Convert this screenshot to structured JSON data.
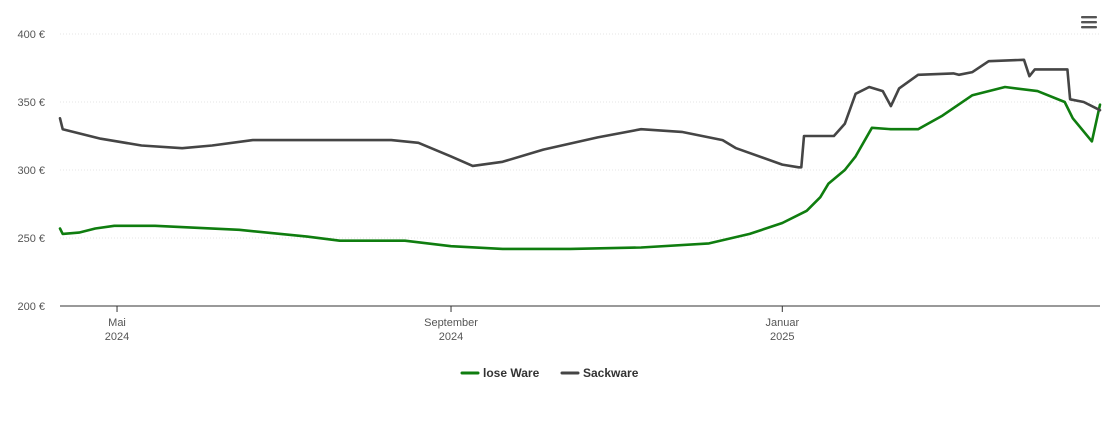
{
  "colors": {
    "lose_ware": "#0f7d0f",
    "sackware": "#454545",
    "grid": "#e6e6e6",
    "axis": "#333333"
  },
  "menu": {
    "icon": "hamburger-menu-icon"
  },
  "chart_data": {
    "type": "line",
    "title": "",
    "xlabel": "",
    "ylabel": "",
    "ylim": [
      200,
      400
    ],
    "xlim": [
      "2024-04-10",
      "2025-04-28"
    ],
    "y_ticks": [
      {
        "value": 200,
        "label": "200 €"
      },
      {
        "value": 250,
        "label": "250 €"
      },
      {
        "value": 300,
        "label": "300 €"
      },
      {
        "value": 350,
        "label": "350 €"
      },
      {
        "value": 400,
        "label": "400 €"
      }
    ],
    "x_ticks": [
      {
        "date": "2024-05-01",
        "label": "Mai",
        "sublabel": "2024"
      },
      {
        "date": "2024-09-01",
        "label": "September",
        "sublabel": "2024"
      },
      {
        "date": "2025-01-01",
        "label": "Januar",
        "sublabel": "2025"
      }
    ],
    "grid": true,
    "legend_position": "bottom-center",
    "series": [
      {
        "name": "lose Ware",
        "color": "#0f7d0f",
        "points": [
          [
            "2024-04-10",
            257
          ],
          [
            "2024-04-11",
            253
          ],
          [
            "2024-04-17",
            254
          ],
          [
            "2024-04-23",
            257
          ],
          [
            "2024-04-30",
            259
          ],
          [
            "2024-05-15",
            259
          ],
          [
            "2024-06-15",
            256
          ],
          [
            "2024-07-10",
            251
          ],
          [
            "2024-07-22",
            248
          ],
          [
            "2024-08-15",
            248
          ],
          [
            "2024-09-01",
            244
          ],
          [
            "2024-09-20",
            242
          ],
          [
            "2024-10-15",
            242
          ],
          [
            "2024-11-10",
            243
          ],
          [
            "2024-12-05",
            246
          ],
          [
            "2024-12-20",
            253
          ],
          [
            "2025-01-01",
            261
          ],
          [
            "2025-01-10",
            270
          ],
          [
            "2025-01-15",
            280
          ],
          [
            "2025-01-18",
            290
          ],
          [
            "2025-01-24",
            300
          ],
          [
            "2025-01-28",
            310
          ],
          [
            "2025-02-03",
            331
          ],
          [
            "2025-02-10",
            330
          ],
          [
            "2025-02-20",
            330
          ],
          [
            "2025-03-01",
            340
          ],
          [
            "2025-03-12",
            355
          ],
          [
            "2025-03-24",
            361
          ],
          [
            "2025-04-05",
            358
          ],
          [
            "2025-04-15",
            350
          ],
          [
            "2025-04-18",
            338
          ],
          [
            "2025-04-25",
            321
          ],
          [
            "2025-04-28",
            348
          ]
        ]
      },
      {
        "name": "Sackware",
        "color": "#454545",
        "points": [
          [
            "2024-04-10",
            338
          ],
          [
            "2024-04-11",
            330
          ],
          [
            "2024-04-25",
            323
          ],
          [
            "2024-05-10",
            318
          ],
          [
            "2024-05-25",
            316
          ],
          [
            "2024-06-05",
            318
          ],
          [
            "2024-06-20",
            322
          ],
          [
            "2024-07-15",
            322
          ],
          [
            "2024-08-10",
            322
          ],
          [
            "2024-08-20",
            320
          ],
          [
            "2024-09-01",
            310
          ],
          [
            "2024-09-09",
            303
          ],
          [
            "2024-09-20",
            306
          ],
          [
            "2024-10-05",
            315
          ],
          [
            "2024-10-25",
            324
          ],
          [
            "2024-11-10",
            330
          ],
          [
            "2024-11-25",
            328
          ],
          [
            "2024-12-10",
            322
          ],
          [
            "2024-12-15",
            316
          ],
          [
            "2025-01-01",
            304
          ],
          [
            "2025-01-07",
            302
          ],
          [
            "2025-01-08",
            302
          ],
          [
            "2025-01-09",
            325
          ],
          [
            "2025-01-20",
            325
          ],
          [
            "2025-01-24",
            334
          ],
          [
            "2025-01-28",
            356
          ],
          [
            "2025-02-02",
            361
          ],
          [
            "2025-02-07",
            358
          ],
          [
            "2025-02-10",
            347
          ],
          [
            "2025-02-13",
            360
          ],
          [
            "2025-02-20",
            370
          ],
          [
            "2025-03-05",
            371
          ],
          [
            "2025-03-07",
            370
          ],
          [
            "2025-03-12",
            372
          ],
          [
            "2025-03-18",
            380
          ],
          [
            "2025-03-31",
            381
          ],
          [
            "2025-04-02",
            369
          ],
          [
            "2025-04-04",
            374
          ],
          [
            "2025-04-16",
            374
          ],
          [
            "2025-04-17",
            352
          ],
          [
            "2025-04-22",
            350
          ],
          [
            "2025-04-28",
            344
          ]
        ]
      }
    ]
  }
}
